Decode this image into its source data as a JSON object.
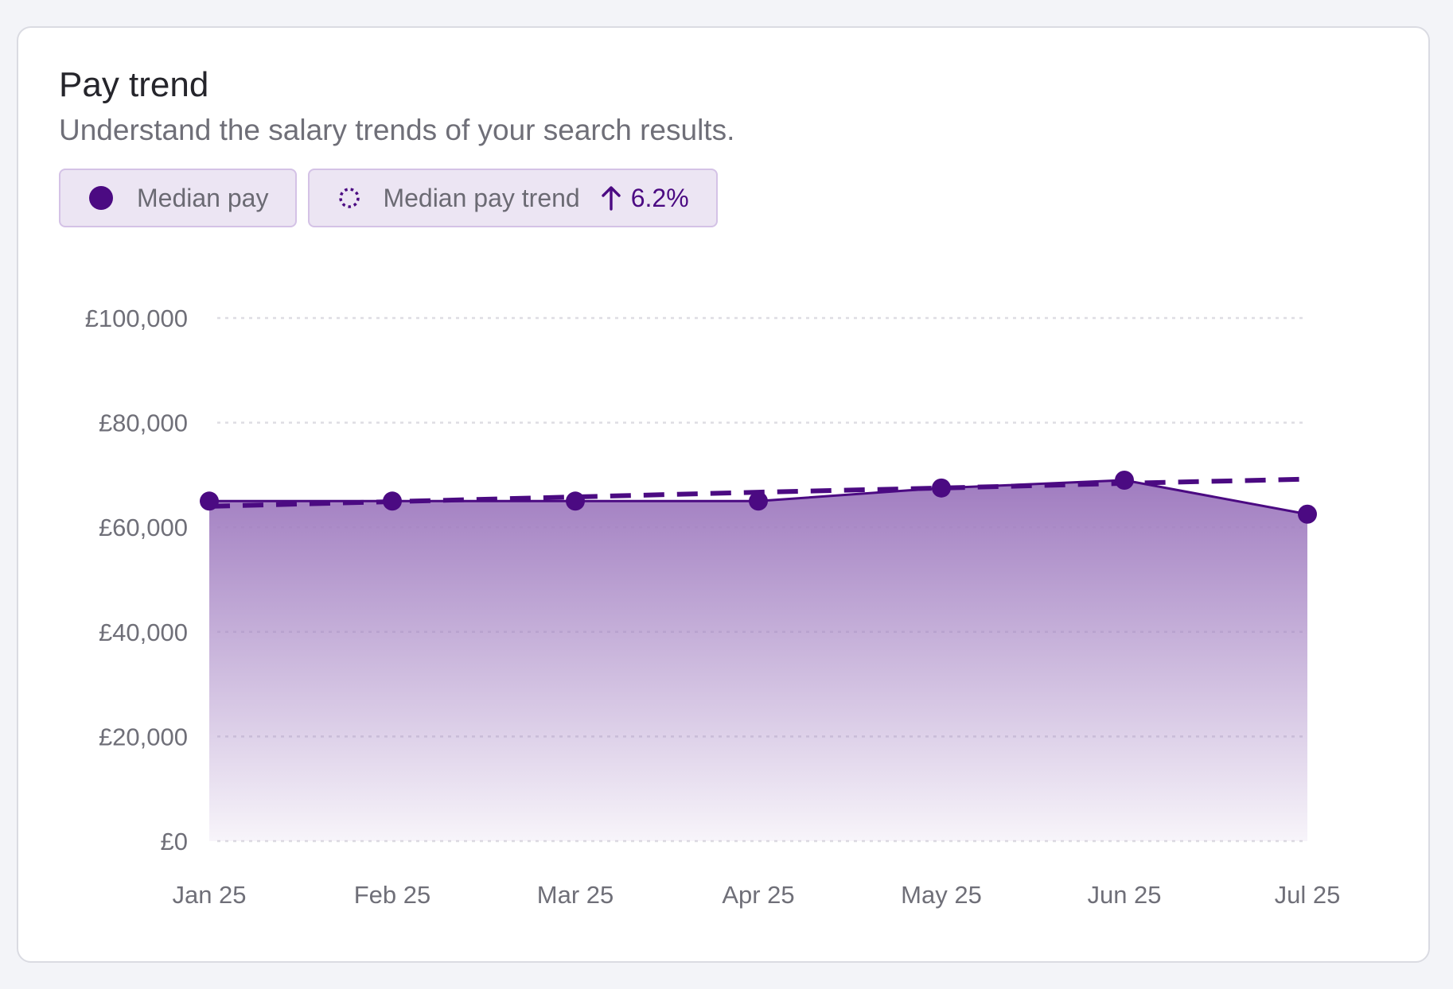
{
  "card": {
    "title": "Pay trend",
    "subtitle": "Understand the salary trends of your search results."
  },
  "legend": {
    "median_label": "Median pay",
    "trend_label": "Median pay trend",
    "trend_change": "6.2%",
    "trend_direction": "up"
  },
  "colors": {
    "accent": "#4b0a82",
    "fill_top": "#a07cc0",
    "chip_bg": "#ece5f3",
    "chip_border": "#d4c2e6",
    "grid": "#dedde3"
  },
  "chart_data": {
    "type": "area",
    "x": [
      "Jan 25",
      "Feb 25",
      "Mar 25",
      "Apr 25",
      "May 25",
      "Jun 25",
      "Jul 25"
    ],
    "y_ticks": [
      "£0",
      "£20,000",
      "£40,000",
      "£60,000",
      "£80,000",
      "£100,000"
    ],
    "ylim": [
      0,
      100000
    ],
    "grid": true,
    "legend_position": "top-left",
    "series": [
      {
        "name": "Median pay",
        "style": "solid-with-markers",
        "values": [
          65000,
          65000,
          65000,
          65000,
          67500,
          69000,
          62500
        ]
      },
      {
        "name": "Median pay trend",
        "style": "dashed",
        "values": [
          64000,
          64900,
          65800,
          66700,
          67500,
          68400,
          69200
        ]
      }
    ]
  }
}
